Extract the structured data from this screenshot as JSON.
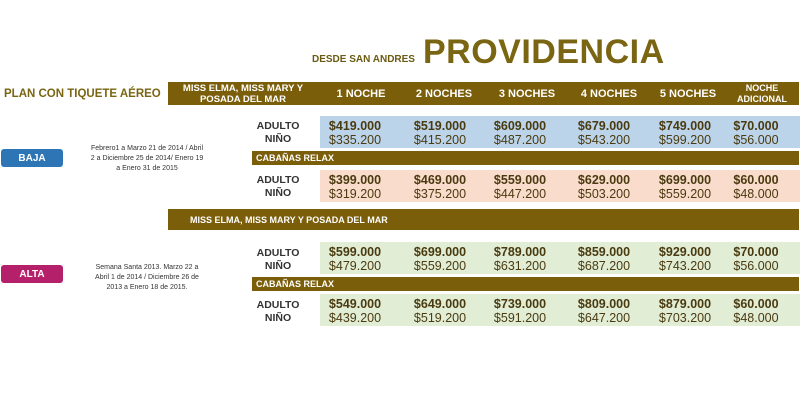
{
  "title": {
    "prefix": "DESDE SAN ANDRES",
    "main": "PROVIDENCIA"
  },
  "plan_label": "PLAN CON TIQUETE AÉREO",
  "header": {
    "hotel": "MISS ELMA, MISS MARY Y POSADA DEL MAR",
    "columns": [
      "1 NOCHE",
      "2 NOCHES",
      "3 NOCHES",
      "4 NOCHES",
      "5 NOCHES",
      "NOCHE ADICIONAL"
    ]
  },
  "row_labels": {
    "adulto": "ADULTO",
    "nino": "NIÑO"
  },
  "seasons": [
    {
      "name": "BAJA",
      "color": "#2e75b6",
      "dates": "Febrero1 a Marzo 21 de 2014 / Abril 2 a Diciembre 25 de 2014/ Enero 19 a Enero 31 de 2015",
      "hotel_bar": "",
      "main": {
        "adulto": [
          "$419.000",
          "$519.000",
          "$609.000",
          "$679.000",
          "$749.000",
          "$70.000"
        ],
        "nino": [
          "$335.200",
          "$415.200",
          "$487.200",
          "$543.200",
          "$599.200",
          "$56.000"
        ]
      },
      "cabanas_label": "CABAÑAS RELAX",
      "cabanas": {
        "adulto": [
          "$399.000",
          "$469.000",
          "$559.000",
          "$629.000",
          "$699.000",
          "$60.000"
        ],
        "nino": [
          "$319.200",
          "$375.200",
          "$447.200",
          "$503.200",
          "$559.200",
          "$48.000"
        ]
      }
    },
    {
      "name": "ALTA",
      "color": "#b5206a",
      "dates": "Semana Santa 2013. Marzo 22 a Abril 1 de 2014 / Diciembre 26 de 2013 a Enero 18 de 2015.",
      "hotel_bar": "MISS ELMA, MISS MARY Y POSADA DEL MAR",
      "main": {
        "adulto": [
          "$599.000",
          "$699.000",
          "$789.000",
          "$859.000",
          "$929.000",
          "$70.000"
        ],
        "nino": [
          "$479.200",
          "$559.200",
          "$631.200",
          "$687.200",
          "$743.200",
          "$56.000"
        ]
      },
      "cabanas_label": "CABAÑAS RELAX",
      "cabanas": {
        "adulto": [
          "$549.000",
          "$649.000",
          "$739.000",
          "$809.000",
          "$879.000",
          "$60.000"
        ],
        "nino": [
          "$439.200",
          "$519.200",
          "$591.200",
          "$647.200",
          "$703.200",
          "$48.000"
        ]
      }
    }
  ]
}
